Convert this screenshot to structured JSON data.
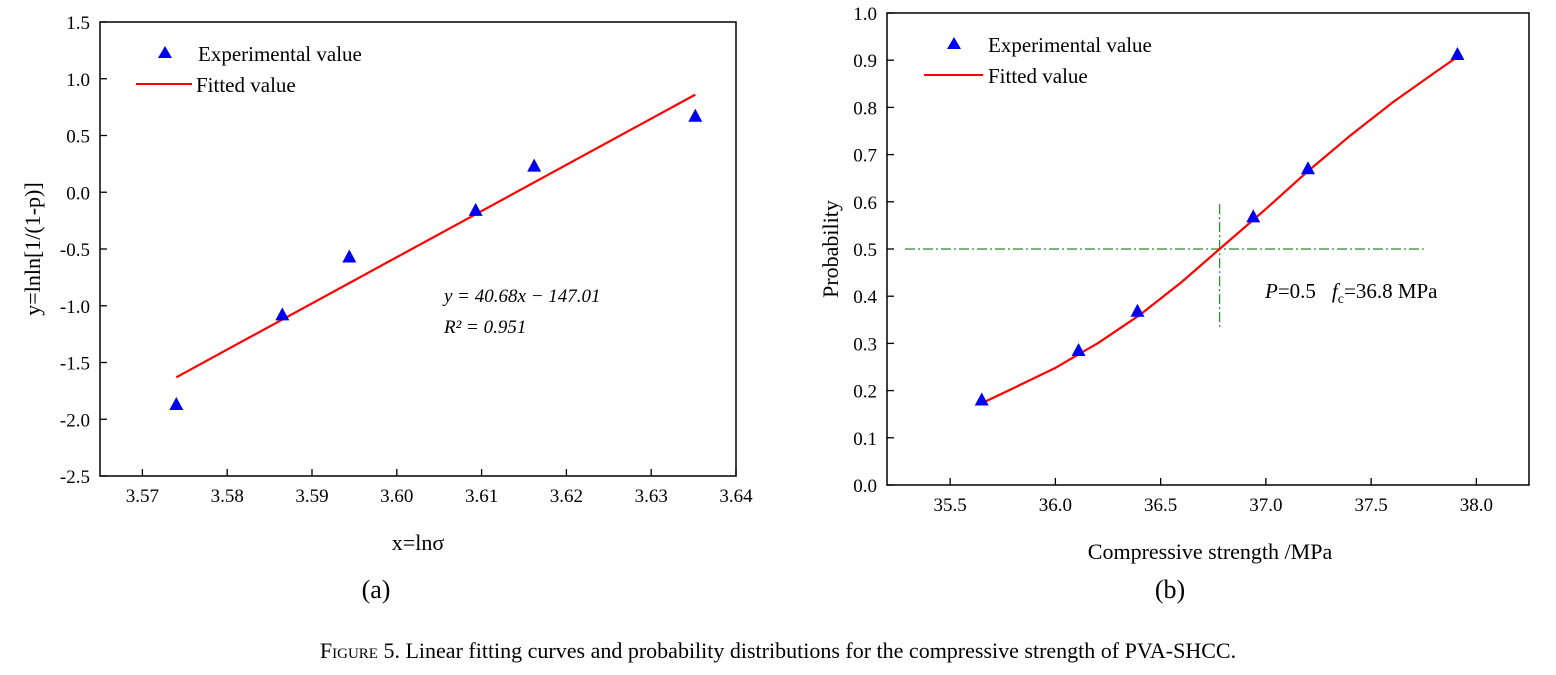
{
  "figure": {
    "caption_prefix": "Figure 5.",
    "caption_text": " Linear fitting curves and probability distributions for the compressive strength of PVA-SHCC."
  },
  "colors": {
    "marker": "#0000ee",
    "fit_line": "#ff0000",
    "guide_line": "#2e8b2e"
  },
  "chart_data": [
    {
      "panel": "(a)",
      "type": "scatter",
      "xlabel": "x=lnσ",
      "ylabel": "y=lnln[1/(1-p)]",
      "xlim": [
        3.565,
        3.64
      ],
      "ylim": [
        -2.5,
        1.5
      ],
      "xticks": [
        "3.57",
        "3.58",
        "3.59",
        "3.60",
        "3.61",
        "3.62",
        "3.63",
        "3.64"
      ],
      "yticks": [
        "-2.5",
        "-2.0",
        "-1.5",
        "-1.0",
        "-0.5",
        "0.0",
        "0.5",
        "1.0",
        "1.5"
      ],
      "legend": {
        "position": "top-left",
        "markers_label": "Experimental value",
        "line_label": "Fitted value"
      },
      "series": [
        {
          "name": "Experimental value",
          "marker": "triangle",
          "x": [
            3.574,
            3.5865,
            3.5944,
            3.6093,
            3.6162,
            3.6352
          ],
          "y": [
            -1.87,
            -1.08,
            -0.57,
            -0.16,
            0.23,
            0.67
          ]
        },
        {
          "name": "Fitted value",
          "style": "line",
          "x": [
            3.574,
            3.6352
          ],
          "y": [
            -1.63,
            0.86
          ]
        }
      ],
      "annotation": {
        "equation": "y = 40.68x − 147.01",
        "r2": "R² = 0.951"
      }
    },
    {
      "panel": "(b)",
      "type": "line",
      "xlabel": "Compressive strength /MPa",
      "ylabel": "Probability",
      "xlim": [
        35.2,
        38.25
      ],
      "ylim": [
        0.0,
        1.0
      ],
      "xticks": [
        "35.5",
        "36.0",
        "36.5",
        "37.0",
        "37.5",
        "38.0"
      ],
      "yticks": [
        "0.0",
        "0.1",
        "0.2",
        "0.3",
        "0.4",
        "0.5",
        "0.6",
        "0.7",
        "0.8",
        "0.9",
        "1.0"
      ],
      "legend": {
        "position": "top-left",
        "markers_label": "Experimental value",
        "line_label": "Fitted value"
      },
      "series": [
        {
          "name": "Experimental value",
          "marker": "triangle",
          "x": [
            35.65,
            36.11,
            36.39,
            36.94,
            37.2,
            37.91
          ],
          "y": [
            0.18,
            0.285,
            0.368,
            0.568,
            0.67,
            0.912
          ]
        },
        {
          "name": "Fitted value",
          "style": "line",
          "x": [
            35.65,
            35.8,
            36.0,
            36.11,
            36.2,
            36.4,
            36.6,
            36.78,
            37.0,
            37.2,
            37.4,
            37.6,
            37.8,
            37.91
          ],
          "y": [
            0.173,
            0.205,
            0.248,
            0.277,
            0.3,
            0.36,
            0.43,
            0.5,
            0.585,
            0.665,
            0.74,
            0.81,
            0.873,
            0.907
          ]
        }
      ],
      "guide": {
        "x": 36.78,
        "y": 0.5
      },
      "annotation": {
        "p_label": "P",
        "p_value": "=0.5",
        "f_label": "f",
        "f_sub": "c",
        "f_value": "=36.8 MPa"
      }
    }
  ]
}
